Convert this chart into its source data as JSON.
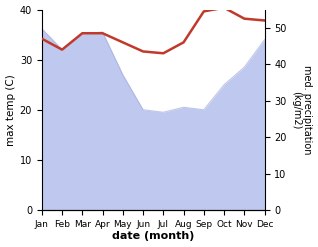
{
  "months": [
    "Jan",
    "Feb",
    "Mar",
    "Apr",
    "May",
    "Jun",
    "Jul",
    "Aug",
    "Sep",
    "Oct",
    "Nov",
    "Dec"
  ],
  "max_temp": [
    36.2,
    32.0,
    35.2,
    35.5,
    27.0,
    20.0,
    19.5,
    20.5,
    20.0,
    25.0,
    28.5,
    34.0
  ],
  "precipitation": [
    47.0,
    44.0,
    48.5,
    48.5,
    46.0,
    43.5,
    43.0,
    46.0,
    54.5,
    55.5,
    52.5,
    52.0
  ],
  "temp_fill_color": "#b8c4ee",
  "precip_color": "#c0392b",
  "temp_ylim": [
    0,
    40
  ],
  "precip_ylim": [
    0,
    55
  ],
  "temp_yticks": [
    0,
    10,
    20,
    30,
    40
  ],
  "precip_yticks": [
    0,
    10,
    20,
    30,
    40,
    50
  ],
  "xlabel": "date (month)",
  "ylabel_left": "max temp (C)",
  "ylabel_right": "med. precipitation\n(kg/m2)",
  "fig_width": 3.18,
  "fig_height": 2.47,
  "dpi": 100
}
